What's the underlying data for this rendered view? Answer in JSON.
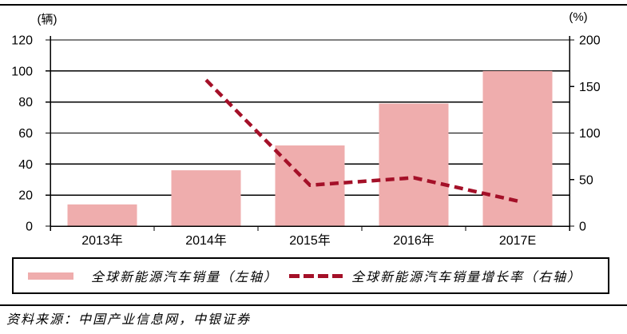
{
  "chart_data": {
    "type": "combo",
    "categories": [
      "2013年",
      "2014年",
      "2015年",
      "2016年",
      "2017E"
    ],
    "series": [
      {
        "name": "全球新能源汽车销量（左轴）",
        "chart_type": "bar",
        "axis": "left",
        "values": [
          14,
          36,
          52,
          79,
          100
        ],
        "color": "#EFADAD"
      },
      {
        "name": "全球新能源汽车销量增长率（右轴）",
        "chart_type": "line",
        "line_style": "dashed",
        "axis": "right",
        "values": [
          null,
          157,
          44,
          52,
          27
        ],
        "color": "#A41028"
      }
    ],
    "left_axis": {
      "unit_label": "(辆)",
      "min": 0,
      "max": 120,
      "step": 20,
      "tick_labels": [
        "0",
        "20",
        "40",
        "60",
        "80",
        "100",
        "120"
      ]
    },
    "right_axis": {
      "unit_label": "(%)",
      "min": 0,
      "max": 200,
      "step": 50,
      "tick_labels": [
        "0",
        "50",
        "100",
        "150",
        "200"
      ]
    },
    "grid": true,
    "legend_position": "bottom"
  },
  "colors": {
    "bar_fill": "#EFADAD",
    "line": "#A41028",
    "axis": "#000000",
    "text": "#000000"
  },
  "footer": {
    "source_text": "资料来源：中国产业信息网，中银证券"
  }
}
